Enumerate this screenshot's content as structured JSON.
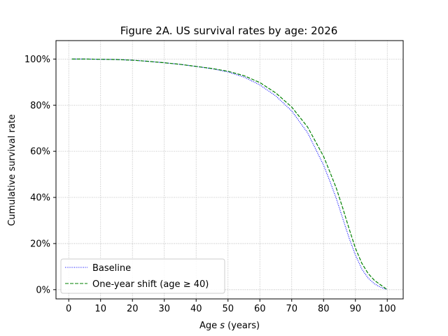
{
  "chart_data": {
    "type": "line",
    "title": "Figure 2A. US survival rates by age: 2026",
    "xlabel_prefix": "Age ",
    "xlabel_var": "s",
    "xlabel_suffix": " (years)",
    "ylabel": "Cumulative survival rate",
    "xlim": [
      -4,
      105
    ],
    "ylim": [
      -0.04,
      1.08
    ],
    "xticks": [
      0,
      10,
      20,
      30,
      40,
      50,
      60,
      70,
      80,
      90,
      100
    ],
    "yticks": [
      0,
      0.2,
      0.4,
      0.6,
      0.8,
      1.0
    ],
    "ytick_labels": [
      "0%",
      "20%",
      "40%",
      "60%",
      "80%",
      "100%"
    ],
    "grid": true,
    "legend_position": "bottom-left",
    "series": [
      {
        "name": "Baseline",
        "color": "#0000ff",
        "style": "dotted",
        "x": [
          1,
          5,
          10,
          15,
          20,
          25,
          30,
          35,
          40,
          45,
          50,
          55,
          60,
          65,
          70,
          75,
          80,
          82,
          84,
          86,
          88,
          90,
          92,
          94,
          96,
          98,
          100
        ],
        "y": [
          1.0,
          1.0,
          0.999,
          0.998,
          0.995,
          0.99,
          0.984,
          0.977,
          0.968,
          0.958,
          0.944,
          0.922,
          0.888,
          0.84,
          0.775,
          0.68,
          0.54,
          0.47,
          0.395,
          0.31,
          0.225,
          0.15,
          0.09,
          0.05,
          0.025,
          0.01,
          0.0
        ]
      },
      {
        "name": "One-year shift (age ≥ 40)",
        "color": "#008000",
        "style": "dashed",
        "x": [
          1,
          5,
          10,
          15,
          20,
          25,
          30,
          35,
          40,
          45,
          50,
          55,
          60,
          65,
          70,
          75,
          80,
          82,
          84,
          86,
          88,
          90,
          92,
          94,
          96,
          98,
          100
        ],
        "y": [
          1.0,
          1.0,
          0.999,
          0.998,
          0.995,
          0.99,
          0.984,
          0.977,
          0.968,
          0.959,
          0.947,
          0.928,
          0.898,
          0.853,
          0.792,
          0.705,
          0.578,
          0.51,
          0.44,
          0.355,
          0.265,
          0.18,
          0.115,
          0.07,
          0.04,
          0.02,
          0.0
        ]
      }
    ]
  }
}
